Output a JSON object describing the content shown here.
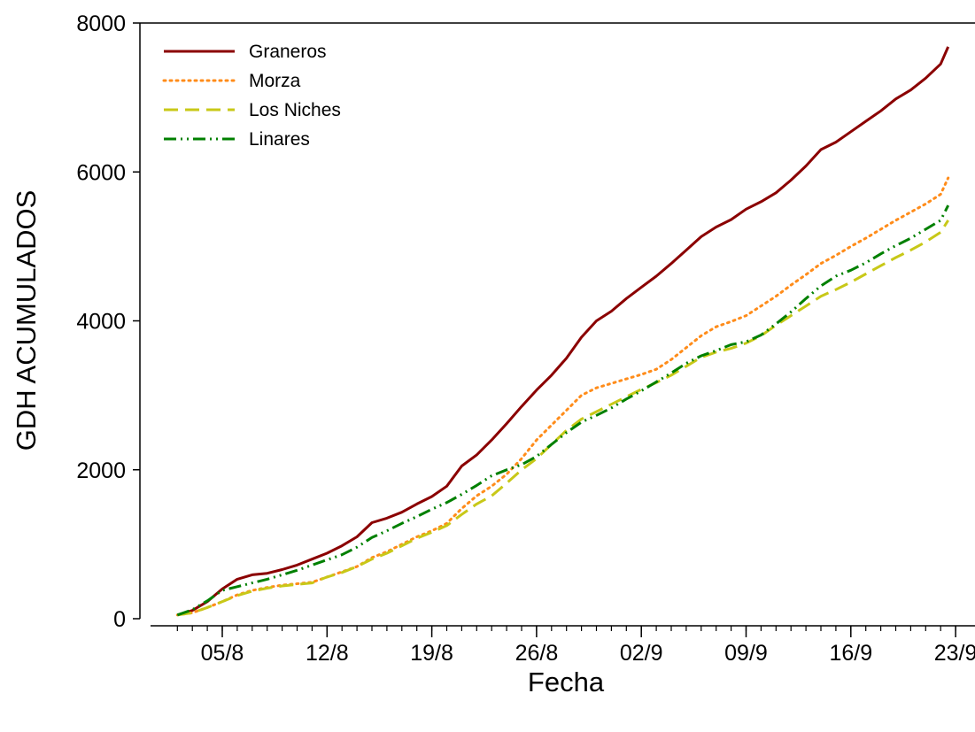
{
  "chart_data": {
    "type": "line",
    "title": "",
    "xlabel": "Fecha",
    "ylabel": "GDH ACUMULADOS",
    "ylim": [
      0,
      8000
    ],
    "yticks": [
      "0",
      "2000",
      "4000",
      "6000",
      "8000"
    ],
    "xticks": [
      "05/8",
      "12/8",
      "19/8",
      "26/8",
      "02/9",
      "09/9",
      "16/9",
      "23/9"
    ],
    "x_start_date": "01/8",
    "grid": false,
    "legend_position": "top-left",
    "series": [
      {
        "name": "Graneros",
        "color": "#8b0000",
        "style": "solid",
        "points": [
          [
            "02/8",
            50
          ],
          [
            "03/8",
            110
          ],
          [
            "04/8",
            230
          ],
          [
            "05/8",
            400
          ],
          [
            "06/8",
            530
          ],
          [
            "07/8",
            590
          ],
          [
            "08/8",
            610
          ],
          [
            "09/8",
            660
          ],
          [
            "10/8",
            720
          ],
          [
            "11/8",
            800
          ],
          [
            "12/8",
            880
          ],
          [
            "13/8",
            980
          ],
          [
            "14/8",
            1100
          ],
          [
            "15/8",
            1290
          ],
          [
            "16/8",
            1350
          ],
          [
            "17/8",
            1430
          ],
          [
            "18/8",
            1540
          ],
          [
            "19/8",
            1640
          ],
          [
            "20/8",
            1780
          ],
          [
            "21/8",
            2050
          ],
          [
            "22/8",
            2200
          ],
          [
            "23/8",
            2400
          ],
          [
            "24/8",
            2620
          ],
          [
            "25/8",
            2850
          ],
          [
            "26/8",
            3070
          ],
          [
            "27/8",
            3270
          ],
          [
            "28/8",
            3500
          ],
          [
            "29/8",
            3780
          ],
          [
            "30/8",
            4000
          ],
          [
            "31/8",
            4130
          ],
          [
            "01/9",
            4300
          ],
          [
            "02/9",
            4450
          ],
          [
            "03/9",
            4600
          ],
          [
            "04/9",
            4770
          ],
          [
            "05/9",
            4950
          ],
          [
            "06/9",
            5130
          ],
          [
            "07/9",
            5260
          ],
          [
            "08/9",
            5360
          ],
          [
            "09/9",
            5500
          ],
          [
            "10/9",
            5600
          ],
          [
            "11/9",
            5720
          ],
          [
            "12/9",
            5890
          ],
          [
            "13/9",
            6080
          ],
          [
            "14/9",
            6300
          ],
          [
            "15/9",
            6400
          ],
          [
            "16/9",
            6540
          ],
          [
            "17/9",
            6680
          ],
          [
            "18/9",
            6820
          ],
          [
            "19/9",
            6980
          ],
          [
            "20/9",
            7100
          ],
          [
            "21/9",
            7260
          ],
          [
            "22/9",
            7450
          ],
          [
            "22.5/9",
            7680
          ]
        ]
      },
      {
        "name": "Morza",
        "color": "#ff8c1a",
        "style": "dotted",
        "points": [
          [
            "02/8",
            50
          ],
          [
            "03/8",
            80
          ],
          [
            "04/8",
            150
          ],
          [
            "05/8",
            230
          ],
          [
            "06/8",
            320
          ],
          [
            "07/8",
            380
          ],
          [
            "08/8",
            420
          ],
          [
            "09/8",
            450
          ],
          [
            "10/8",
            470
          ],
          [
            "11/8",
            490
          ],
          [
            "12/8",
            560
          ],
          [
            "13/8",
            630
          ],
          [
            "14/8",
            700
          ],
          [
            "15/8",
            820
          ],
          [
            "16/8",
            900
          ],
          [
            "17/8",
            1000
          ],
          [
            "18/8",
            1100
          ],
          [
            "19/8",
            1180
          ],
          [
            "20/8",
            1280
          ],
          [
            "21/8",
            1480
          ],
          [
            "22/8",
            1650
          ],
          [
            "23/8",
            1780
          ],
          [
            "24/8",
            1940
          ],
          [
            "25/8",
            2150
          ],
          [
            "26/8",
            2400
          ],
          [
            "27/8",
            2600
          ],
          [
            "28/8",
            2800
          ],
          [
            "29/8",
            3000
          ],
          [
            "30/8",
            3100
          ],
          [
            "31/8",
            3160
          ],
          [
            "01/9",
            3220
          ],
          [
            "02/9",
            3280
          ],
          [
            "03/9",
            3350
          ],
          [
            "04/9",
            3480
          ],
          [
            "05/9",
            3640
          ],
          [
            "06/9",
            3800
          ],
          [
            "07/9",
            3920
          ],
          [
            "08/9",
            3990
          ],
          [
            "09/9",
            4070
          ],
          [
            "10/9",
            4200
          ],
          [
            "11/9",
            4330
          ],
          [
            "12/9",
            4480
          ],
          [
            "13/9",
            4620
          ],
          [
            "14/9",
            4770
          ],
          [
            "15/9",
            4880
          ],
          [
            "16/9",
            5000
          ],
          [
            "17/9",
            5110
          ],
          [
            "18/9",
            5230
          ],
          [
            "19/9",
            5350
          ],
          [
            "20/9",
            5460
          ],
          [
            "21/9",
            5570
          ],
          [
            "22/9",
            5700
          ],
          [
            "22.5/9",
            5920
          ]
        ]
      },
      {
        "name": "Los Niches",
        "color": "#c8c818",
        "style": "dashed",
        "points": [
          [
            "02/8",
            50
          ],
          [
            "03/8",
            80
          ],
          [
            "04/8",
            150
          ],
          [
            "05/8",
            230
          ],
          [
            "06/8",
            310
          ],
          [
            "07/8",
            370
          ],
          [
            "08/8",
            410
          ],
          [
            "09/8",
            440
          ],
          [
            "10/8",
            460
          ],
          [
            "11/8",
            480
          ],
          [
            "12/8",
            560
          ],
          [
            "13/8",
            620
          ],
          [
            "14/8",
            700
          ],
          [
            "15/8",
            800
          ],
          [
            "16/8",
            880
          ],
          [
            "17/8",
            980
          ],
          [
            "18/8",
            1080
          ],
          [
            "19/8",
            1160
          ],
          [
            "20/8",
            1250
          ],
          [
            "21/8",
            1400
          ],
          [
            "22/8",
            1540
          ],
          [
            "23/8",
            1650
          ],
          [
            "24/8",
            1820
          ],
          [
            "25/8",
            2000
          ],
          [
            "26/8",
            2150
          ],
          [
            "27/8",
            2340
          ],
          [
            "28/8",
            2530
          ],
          [
            "29/8",
            2680
          ],
          [
            "30/8",
            2780
          ],
          [
            "31/8",
            2880
          ],
          [
            "01/9",
            2980
          ],
          [
            "02/9",
            3080
          ],
          [
            "03/9",
            3170
          ],
          [
            "04/9",
            3270
          ],
          [
            "05/9",
            3390
          ],
          [
            "06/9",
            3510
          ],
          [
            "07/9",
            3580
          ],
          [
            "08/9",
            3630
          ],
          [
            "09/9",
            3700
          ],
          [
            "10/9",
            3800
          ],
          [
            "11/9",
            3940
          ],
          [
            "12/9",
            4070
          ],
          [
            "13/9",
            4200
          ],
          [
            "14/9",
            4330
          ],
          [
            "15/9",
            4420
          ],
          [
            "16/9",
            4520
          ],
          [
            "17/9",
            4630
          ],
          [
            "18/9",
            4740
          ],
          [
            "19/9",
            4850
          ],
          [
            "20/9",
            4950
          ],
          [
            "21/9",
            5060
          ],
          [
            "22/9",
            5190
          ],
          [
            "22.5/9",
            5350
          ]
        ]
      },
      {
        "name": "Linares",
        "color": "#008000",
        "style": "dash-dot-dot",
        "points": [
          [
            "02/8",
            50
          ],
          [
            "03/8",
            120
          ],
          [
            "04/8",
            240
          ],
          [
            "05/8",
            380
          ],
          [
            "06/8",
            430
          ],
          [
            "07/8",
            480
          ],
          [
            "08/8",
            530
          ],
          [
            "09/8",
            590
          ],
          [
            "10/8",
            650
          ],
          [
            "11/8",
            720
          ],
          [
            "12/8",
            790
          ],
          [
            "13/8",
            860
          ],
          [
            "14/8",
            960
          ],
          [
            "15/8",
            1090
          ],
          [
            "16/8",
            1180
          ],
          [
            "17/8",
            1280
          ],
          [
            "18/8",
            1370
          ],
          [
            "19/8",
            1470
          ],
          [
            "20/8",
            1560
          ],
          [
            "21/8",
            1670
          ],
          [
            "22/8",
            1790
          ],
          [
            "23/8",
            1920
          ],
          [
            "24/8",
            2000
          ],
          [
            "25/8",
            2070
          ],
          [
            "26/8",
            2180
          ],
          [
            "27/8",
            2340
          ],
          [
            "28/8",
            2500
          ],
          [
            "29/8",
            2640
          ],
          [
            "30/8",
            2730
          ],
          [
            "31/8",
            2830
          ],
          [
            "01/9",
            2950
          ],
          [
            "02/9",
            3060
          ],
          [
            "03/9",
            3180
          ],
          [
            "04/9",
            3300
          ],
          [
            "05/9",
            3430
          ],
          [
            "06/9",
            3530
          ],
          [
            "07/9",
            3600
          ],
          [
            "08/9",
            3680
          ],
          [
            "09/9",
            3720
          ],
          [
            "10/9",
            3810
          ],
          [
            "11/9",
            3960
          ],
          [
            "12/9",
            4120
          ],
          [
            "13/9",
            4300
          ],
          [
            "14/9",
            4470
          ],
          [
            "15/9",
            4600
          ],
          [
            "16/9",
            4680
          ],
          [
            "17/9",
            4780
          ],
          [
            "18/9",
            4900
          ],
          [
            "19/9",
            5010
          ],
          [
            "20/9",
            5110
          ],
          [
            "21/9",
            5230
          ],
          [
            "22/9",
            5350
          ],
          [
            "22.5/9",
            5550
          ]
        ]
      }
    ]
  }
}
